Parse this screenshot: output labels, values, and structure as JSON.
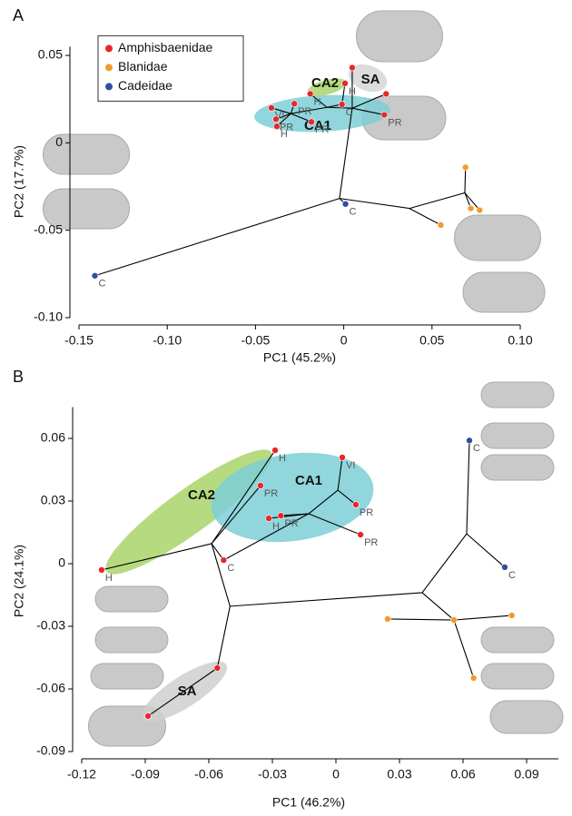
{
  "chart_data": [
    {
      "type": "scatter",
      "panel": "A",
      "x_label": "PC1 (45.2%)",
      "y_label": "PC2 (17.7%)",
      "xlim": [
        -0.15,
        0.1
      ],
      "ylim": [
        -0.1,
        0.055
      ],
      "xticks": [
        -0.15,
        {
          "value": -0.1,
          "label": "-0.10"
        },
        -0.05,
        0,
        0.05,
        {
          "value": 0.1,
          "label": "0.10"
        }
      ],
      "yticks": [
        {
          "value": -0.1,
          "label": "-0.10"
        },
        -0.05,
        0,
        0.05
      ],
      "legend": "upper left",
      "series": [
        {
          "name": "Amphisbaenidae",
          "color": "#e8262b",
          "x": [
            0.0048,
            0.024,
            0.023,
            -0.001,
            -0.019,
            0.0007,
            -0.041,
            -0.028,
            -0.0384,
            -0.0379,
            -0.0183
          ],
          "y": [
            0.043,
            0.028,
            0.016,
            0.022,
            0.028,
            0.034,
            0.02,
            0.0224,
            0.0135,
            0.0094,
            0.012
          ],
          "point_labels": [
            null,
            null,
            "PR",
            "C",
            "H",
            "H",
            "VI",
            "PR",
            "PR",
            "H",
            "PR"
          ]
        },
        {
          "name": "Blanidae",
          "color": "#f39a2b",
          "x": [
            0.069,
            0.072,
            0.077,
            0.055
          ],
          "y": [
            -0.014,
            -0.0375,
            -0.0385,
            -0.047
          ]
        },
        {
          "name": "Cadeidae",
          "color": "#2f4f9f",
          "x": [
            0.001,
            -0.141
          ],
          "y": [
            -0.035,
            -0.076
          ],
          "point_labels": [
            "C",
            "C"
          ]
        }
      ],
      "branches": [
        [
          -0.0024,
          -0.0318,
          -0.141,
          -0.076
        ],
        [
          -0.0024,
          -0.0318,
          0.001,
          -0.035
        ],
        [
          -0.0024,
          -0.0318,
          0.0372,
          -0.0375
        ],
        [
          0.0372,
          -0.0375,
          0.055,
          -0.047
        ],
        [
          0.0372,
          -0.0375,
          0.0686,
          -0.0286
        ],
        [
          0.0686,
          -0.0286,
          0.069,
          -0.014
        ],
        [
          0.0686,
          -0.0286,
          0.072,
          -0.0375
        ],
        [
          0.0686,
          -0.0286,
          0.077,
          -0.0385
        ],
        [
          -0.0024,
          -0.0318,
          0.0048,
          0.0198
        ],
        [
          0.0048,
          0.0198,
          0.0048,
          0.043
        ],
        [
          0.0048,
          0.0198,
          0.024,
          0.028
        ],
        [
          0.0048,
          0.0198,
          0.023,
          0.016
        ],
        [
          0.0048,
          0.0198,
          -0.0095,
          0.0203
        ],
        [
          -0.0095,
          0.0203,
          -0.001,
          0.022
        ],
        [
          -0.0095,
          0.0203,
          -0.019,
          0.028
        ],
        [
          -0.001,
          0.022,
          0.0007,
          0.034
        ],
        [
          -0.0095,
          0.0203,
          -0.03,
          0.0167
        ],
        [
          -0.03,
          0.0167,
          -0.041,
          0.02
        ],
        [
          -0.03,
          0.0167,
          -0.028,
          0.0224
        ],
        [
          -0.03,
          0.0167,
          -0.0384,
          0.0135
        ],
        [
          -0.03,
          0.0167,
          -0.0379,
          0.0094
        ],
        [
          -0.03,
          0.0167,
          -0.0183,
          0.012
        ]
      ],
      "annotations": [
        "CA2",
        "SA",
        "CA1"
      ]
    },
    {
      "type": "scatter",
      "panel": "B",
      "x_label": "PC1 (46.2%)",
      "y_label": "PC2 (24.1%)",
      "xlim": [
        -0.12,
        0.105
      ],
      "ylim": [
        -0.09,
        0.075
      ],
      "xticks": [
        -0.12,
        -0.09,
        -0.06,
        -0.03,
        0,
        0.03,
        0.06,
        0.09
      ],
      "yticks": [
        -0.09,
        -0.06,
        -0.03,
        0,
        0.03,
        0.06
      ],
      "series": [
        {
          "color": "#e8262b",
          "x": [
            -0.0287,
            0.003,
            -0.0356,
            0.0094,
            0.0116,
            -0.026,
            -0.0317,
            -0.053,
            -0.1106,
            -0.056,
            -0.0887
          ],
          "y": [
            0.0543,
            0.0509,
            0.0374,
            0.0283,
            0.0139,
            0.023,
            0.0217,
            0.0017,
            -0.003,
            -0.05,
            -0.073
          ],
          "point_labels": [
            "H",
            "VI",
            "PR",
            "PR",
            "PR",
            "PR",
            "H",
            "C",
            "H",
            null,
            null
          ]
        },
        {
          "color": "#f39a2b",
          "x": [
            0.083,
            0.0244,
            0.0557,
            0.065
          ],
          "y": [
            -0.0248,
            -0.0265,
            -0.027,
            -0.0548
          ]
        },
        {
          "color": "#2f4f9f",
          "x": [
            0.063,
            0.0797
          ],
          "y": [
            0.059,
            -0.0017
          ],
          "point_labels": [
            "C",
            "C"
          ]
        }
      ],
      "branches": [
        [
          -0.0587,
          0.0096,
          -0.1106,
          -0.003
        ],
        [
          -0.0587,
          0.0096,
          -0.0287,
          0.0543
        ],
        [
          -0.0587,
          0.0096,
          -0.05,
          -0.0204
        ],
        [
          -0.05,
          -0.0204,
          -0.056,
          -0.05
        ],
        [
          -0.056,
          -0.05,
          -0.0887,
          -0.073
        ],
        [
          -0.05,
          -0.0204,
          0.0407,
          -0.0139
        ],
        [
          0.0407,
          -0.0139,
          0.0617,
          0.0143
        ],
        [
          0.0617,
          0.0143,
          0.063,
          0.059
        ],
        [
          0.0617,
          0.0143,
          0.0797,
          -0.0017
        ],
        [
          0.0407,
          -0.0139,
          0.0557,
          -0.027
        ],
        [
          0.0557,
          -0.027,
          0.0244,
          -0.0265
        ],
        [
          0.0557,
          -0.027,
          0.083,
          -0.0248
        ],
        [
          0.0557,
          -0.027,
          0.065,
          -0.0548
        ],
        [
          -0.0587,
          0.0096,
          -0.053,
          0.0017
        ],
        [
          -0.053,
          0.0017,
          -0.0129,
          0.0239
        ],
        [
          -0.0129,
          0.0239,
          -0.026,
          0.023
        ],
        [
          -0.0129,
          0.0239,
          -0.0317,
          0.0217
        ],
        [
          -0.0129,
          0.0239,
          0.0009,
          0.0352
        ],
        [
          0.0009,
          0.0352,
          0.003,
          0.0509
        ],
        [
          0.0009,
          0.0352,
          0.0094,
          0.0283
        ],
        [
          -0.0129,
          0.0239,
          0.0116,
          0.0139
        ],
        [
          -0.0587,
          0.0096,
          -0.0356,
          0.0374
        ]
      ],
      "annotations": [
        "CA2",
        "CA1",
        "SA"
      ]
    }
  ]
}
